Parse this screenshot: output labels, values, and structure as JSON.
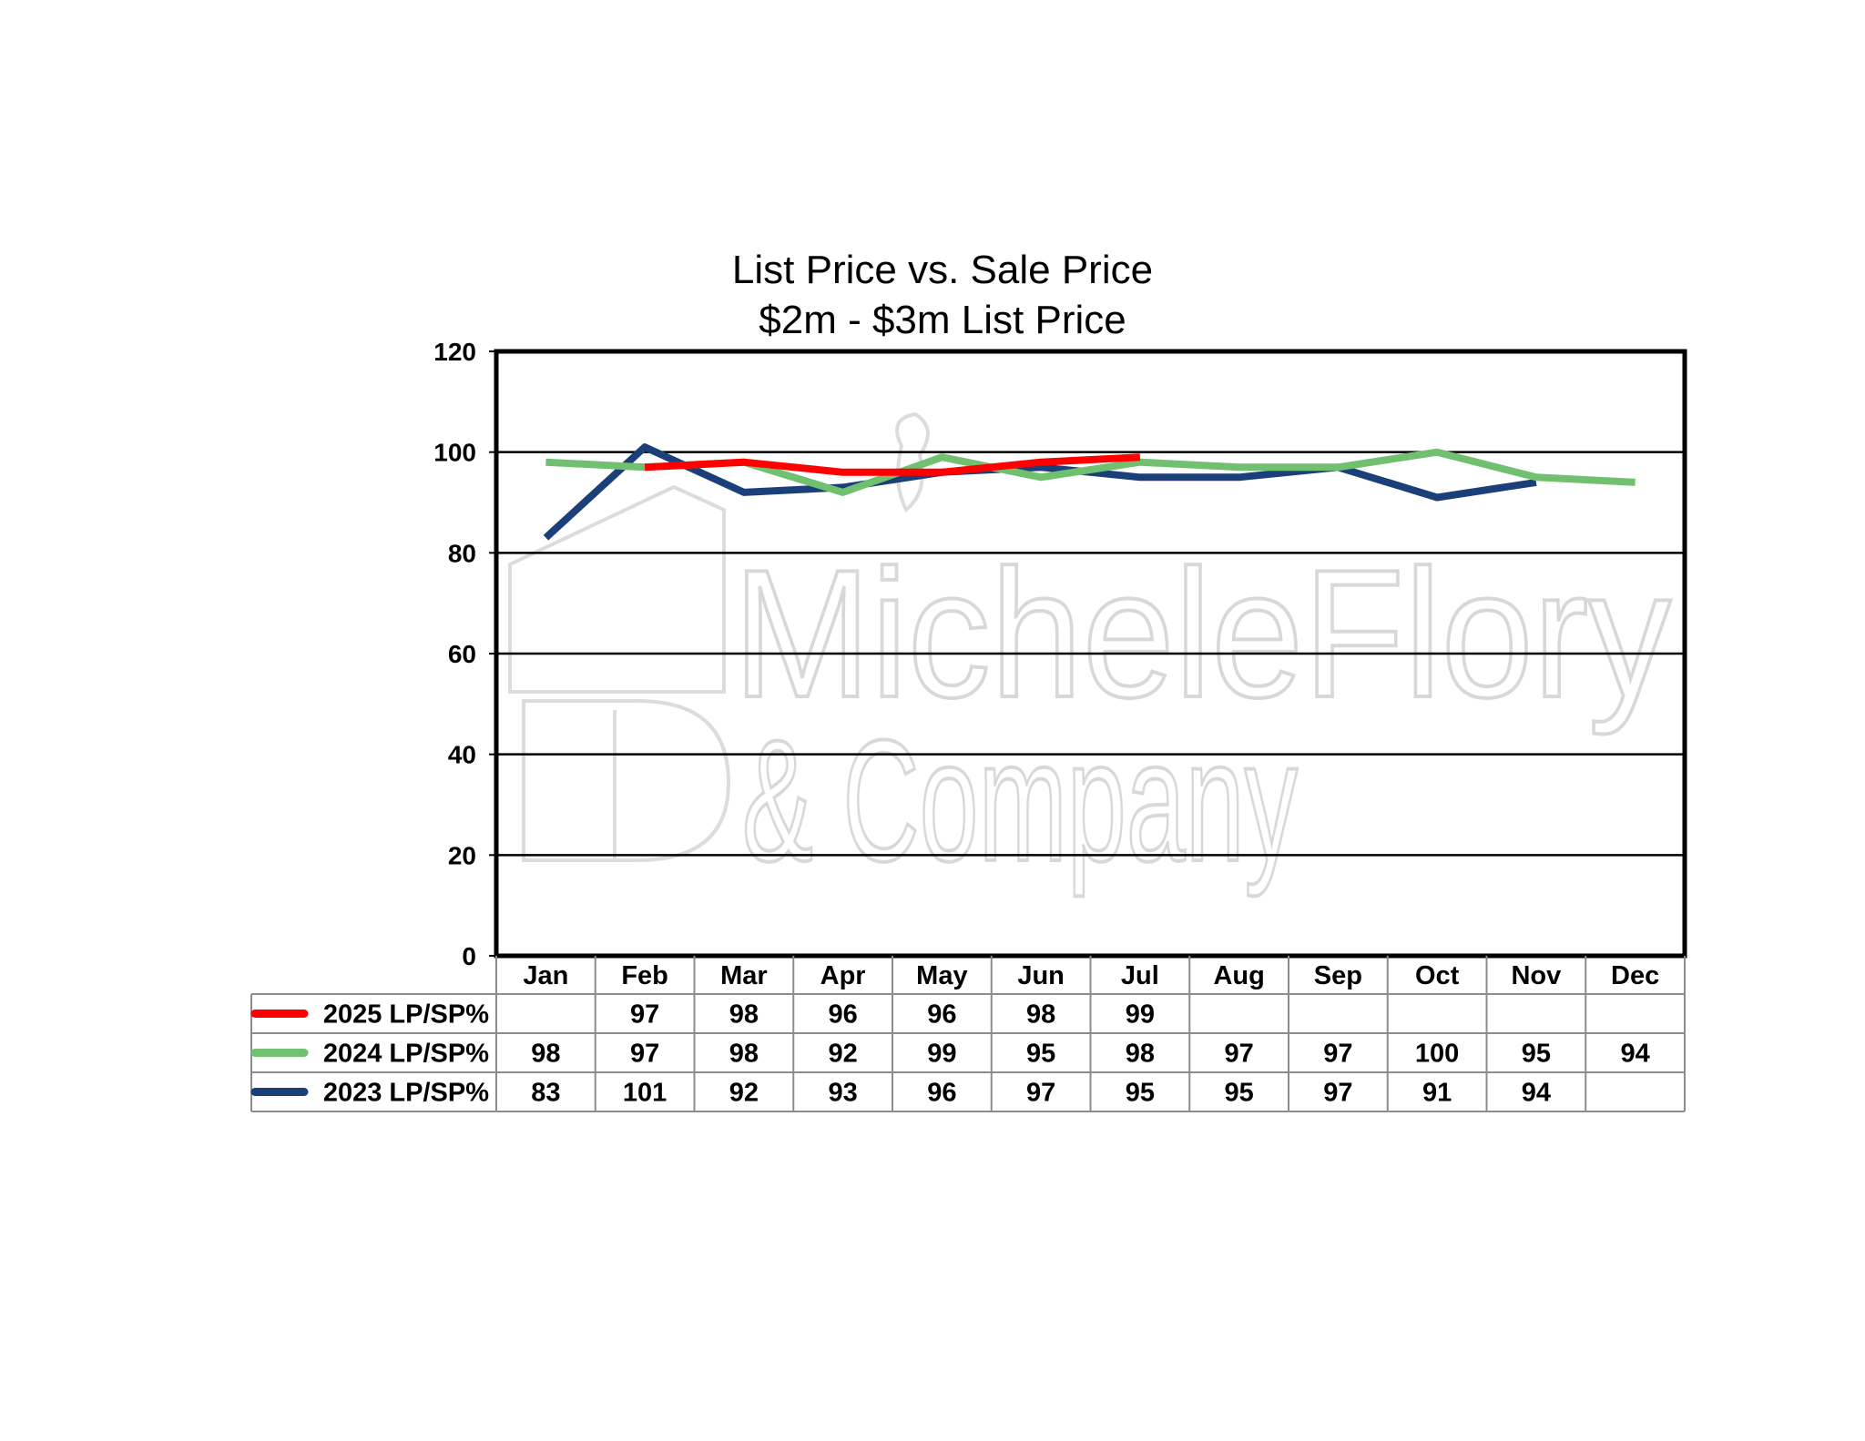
{
  "chart_data": {
    "type": "line",
    "title": "List Price vs. Sale Price",
    "subtitle": "$2m - $3m List Price",
    "categories": [
      "Jan",
      "Feb",
      "Mar",
      "Apr",
      "May",
      "Jun",
      "Jul",
      "Aug",
      "Sep",
      "Oct",
      "Nov",
      "Dec"
    ],
    "ylim": [
      0,
      120
    ],
    "yticks": [
      0,
      20,
      40,
      60,
      80,
      100,
      120
    ],
    "grid": true,
    "legend": "data-table-left",
    "series": [
      {
        "name": "2025 LP/SP%",
        "color": "#ff0000",
        "values": [
          null,
          97,
          98,
          96,
          96,
          98,
          99,
          null,
          null,
          null,
          null,
          null
        ]
      },
      {
        "name": "2024 LP/SP%",
        "color": "#70c070",
        "values": [
          98,
          97,
          98,
          92,
          99,
          95,
          98,
          97,
          97,
          100,
          95,
          94
        ]
      },
      {
        "name": "2023 LP/SP%",
        "color": "#1b3f78",
        "values": [
          83,
          101,
          92,
          93,
          96,
          97,
          95,
          95,
          97,
          91,
          94,
          null
        ]
      }
    ],
    "watermark": {
      "line1": "MicheleFlory",
      "line2": "& Company"
    }
  }
}
